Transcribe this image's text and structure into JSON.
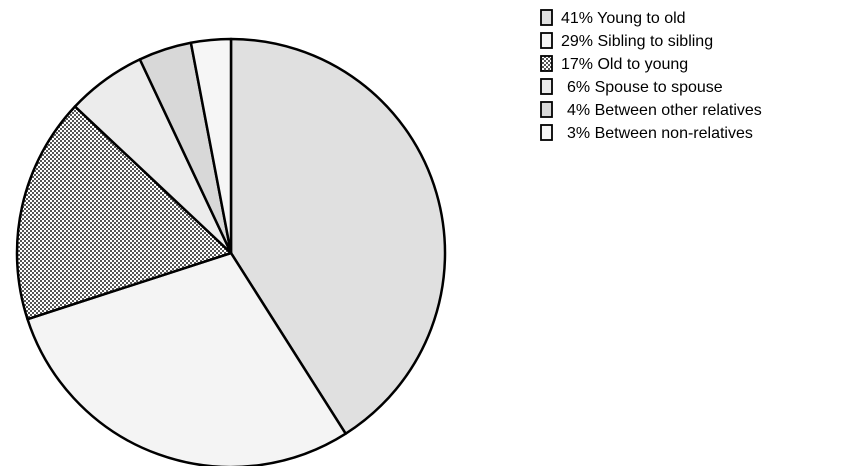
{
  "chart_data": {
    "type": "pie",
    "title": "",
    "legend_position": "top-right",
    "start_angle": "top, clockwise",
    "slices": [
      {
        "label": "41% Young to old",
        "value": 41,
        "fill": "#e0e0e0",
        "pattern": "solid"
      },
      {
        "label": "29% Sibling to sibling",
        "value": 29,
        "fill": "#f4f4f4",
        "pattern": "solid"
      },
      {
        "label": "17% Old to young",
        "value": 17,
        "fill": "#ffffff",
        "pattern": "checker"
      },
      {
        "label": "6% Spouse to spouse",
        "value": 6,
        "fill": "#ececec",
        "pattern": "solid"
      },
      {
        "label": "4% Between other relatives",
        "value": 4,
        "fill": "#d8d8d8",
        "pattern": "solid"
      },
      {
        "label": "3% Between non-relatives",
        "value": 3,
        "fill": "#f6f6f6",
        "pattern": "solid"
      }
    ],
    "stroke_color": "#000000"
  }
}
